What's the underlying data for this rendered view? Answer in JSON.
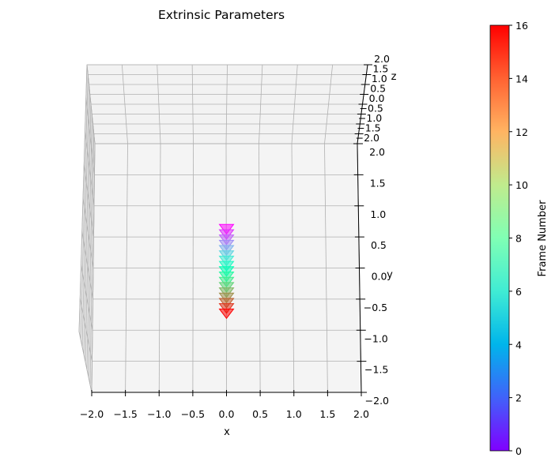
{
  "chart_data": {
    "type": "scatter",
    "title": "Extrinsic Parameters",
    "xlabel": "x",
    "ylabel": "y",
    "zlabel": "z",
    "projection": "3d",
    "xlim": [
      -2.0,
      2.0
    ],
    "ylim": [
      -2.0,
      2.0
    ],
    "zlim": [
      -2.0,
      2.0
    ],
    "xticks": [
      "−2.0",
      "−1.5",
      "−1.0",
      "−0.5",
      "0.0",
      "0.5",
      "1.0",
      "1.5",
      "2.0"
    ],
    "yticks": [
      "−2.0",
      "−1.5",
      "−1.0",
      "−0.5",
      "0.0",
      "0.5",
      "1.0",
      "1.5",
      "2.0"
    ],
    "zticks": [
      "−2.0",
      "−1.5",
      "−1.0",
      "−0.5",
      "0.0",
      "0.5",
      "1.0",
      "1.5",
      "2.0"
    ],
    "grid": true,
    "marker": "triangle-down",
    "colormap": "rainbow",
    "series": [
      {
        "frame": [
          0,
          1,
          2,
          3,
          4,
          5,
          6,
          7,
          8,
          9,
          10,
          11,
          12,
          13,
          14,
          15,
          16
        ],
        "x": [
          0,
          0,
          0,
          0,
          0,
          0,
          0,
          0,
          0,
          0,
          0,
          0,
          0,
          0,
          0,
          0,
          0
        ],
        "y": [
          0.6,
          0.515,
          0.43,
          0.345,
          0.26,
          0.175,
          0.09,
          0.005,
          -0.08,
          -0.165,
          -0.25,
          -0.335,
          -0.42,
          -0.505,
          -0.59,
          -0.675,
          -0.76
        ]
      }
    ],
    "colorbar": {
      "label": "Frame Number",
      "range": [
        0,
        16
      ],
      "ticks": [
        "0",
        "2",
        "4",
        "6",
        "8",
        "10",
        "12",
        "14",
        "16"
      ]
    }
  }
}
